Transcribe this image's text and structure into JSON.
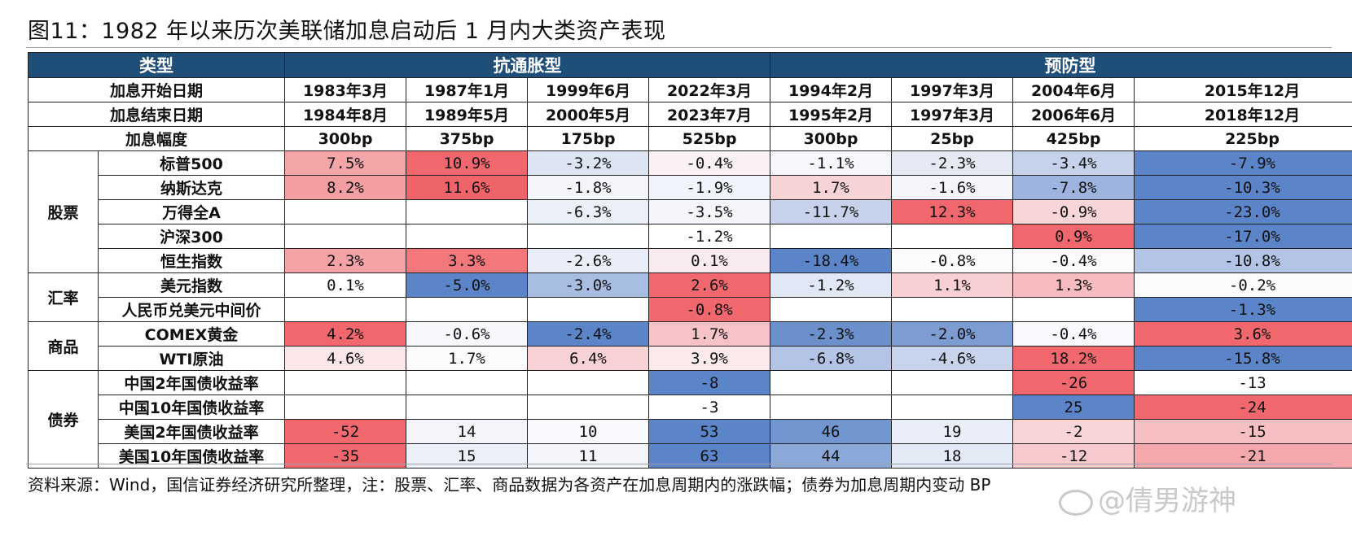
{
  "title": "图11：1982 年以来历次美联储加息启动后 1 月内大类资产表现",
  "header": {
    "type_label": "类型",
    "group_anti_inflation": "抗通胀型",
    "group_preventive": "预防型"
  },
  "rows_meta": {
    "start_label": "加息开始日期",
    "end_label": "加息结束日期",
    "size_label": "加息幅度",
    "start": [
      "1983年3月",
      "1987年1月",
      "1999年6月",
      "2022年3月",
      "1994年2月",
      "1997年3月",
      "2004年6月",
      "2015年12月"
    ],
    "end": [
      "1984年8月",
      "1989年5月",
      "2000年5月",
      "2023年7月",
      "1995年2月",
      "1997年3月",
      "2006年6月",
      "2018年12月"
    ],
    "size": [
      "300bp",
      "375bp",
      "175bp",
      "525bp",
      "300bp",
      "25bp",
      "425bp",
      "225bp"
    ]
  },
  "categories": [
    {
      "name": "股票",
      "rows": [
        {
          "name": "标普500",
          "values": [
            "7.5%",
            "10.9%",
            "-3.2%",
            "-0.4%",
            "-1.1%",
            "-2.3%",
            "-3.4%",
            "-7.9%"
          ],
          "colors": [
            "#f4a5a8",
            "#f0686e",
            "#dde4f2",
            "#f9f1f4",
            "#f6f7fc",
            "#e4e9f4",
            "#c6d2eb",
            "#5b85c8"
          ]
        },
        {
          "name": "纳斯达克",
          "values": [
            "8.2%",
            "11.6%",
            "-1.8%",
            "-1.9%",
            "1.7%",
            "-1.6%",
            "-7.8%",
            "-10.3%"
          ],
          "colors": [
            "#f29ea2",
            "#ef6469",
            "#f3f5fb",
            "#f1f4fb",
            "#f8d3d6",
            "#f3f5fb",
            "#9db4de",
            "#5b85c8"
          ]
        },
        {
          "name": "万得全A",
          "values": [
            "",
            "",
            "-6.3%",
            "-3.5%",
            "-11.7%",
            "12.3%",
            "-0.9%",
            "-23.0%"
          ],
          "colors": [
            "#ffffff",
            "#ffffff",
            "#ebeff8",
            "#f4f6fb",
            "#c6d2eb",
            "#f0686e",
            "#f8d6d8",
            "#5b85c8"
          ]
        },
        {
          "name": "沪深300",
          "values": [
            "",
            "",
            "",
            "-1.2%",
            "",
            "",
            "0.9%",
            "-17.0%"
          ],
          "colors": [
            "#ffffff",
            "#ffffff",
            "#ffffff",
            "#ffffff",
            "#ffffff",
            "#ffffff",
            "#f0686e",
            "#5b85c8"
          ]
        },
        {
          "name": "恒生指数",
          "values": [
            "2.3%",
            "3.3%",
            "-2.6%",
            "0.1%",
            "-18.4%",
            "-0.8%",
            "-0.4%",
            "-10.8%"
          ],
          "colors": [
            "#f5a3a6",
            "#f2787c",
            "#e9eef8",
            "#f9eaee",
            "#5b85c8",
            "#fbfbfe",
            "#fbfbfe",
            "#b3c4e6"
          ]
        }
      ]
    },
    {
      "name": "汇率",
      "rows": [
        {
          "name": "美元指数",
          "values": [
            "0.1%",
            "-5.0%",
            "-3.0%",
            "2.6%",
            "-1.2%",
            "1.1%",
            "1.3%",
            "-0.2%"
          ],
          "colors": [
            "#ffffff",
            "#5b85c8",
            "#a8bde2",
            "#f0686e",
            "#e1e7f4",
            "#f8d0d3",
            "#f6bcc0",
            "#fbfbfe"
          ]
        },
        {
          "name": "人民币兑美元中间价",
          "values": [
            "",
            "",
            "",
            "-0.8%",
            "",
            "",
            "",
            "-1.3%"
          ],
          "colors": [
            "#ffffff",
            "#ffffff",
            "#ffffff",
            "#f0686e",
            "#ffffff",
            "#ffffff",
            "#ffffff",
            "#5b85c8"
          ]
        }
      ]
    },
    {
      "name": "商品",
      "rows": [
        {
          "name": "COMEX黄金",
          "values": [
            "4.2%",
            "-0.6%",
            "-2.4%",
            "1.7%",
            "-2.3%",
            "-2.0%",
            "-0.4%",
            "3.6%"
          ],
          "colors": [
            "#f0686e",
            "#f7f8fc",
            "#5b85c8",
            "#f7c3c6",
            "#6b90cc",
            "#7d9dd2",
            "#f9f9fd",
            "#f0686e"
          ]
        },
        {
          "name": "WTI原油",
          "values": [
            "4.6%",
            "1.7%",
            "6.4%",
            "3.9%",
            "-6.8%",
            "-4.6%",
            "18.2%",
            "-15.8%"
          ],
          "colors": [
            "#fbe7ea",
            "#fbfbfd",
            "#f8d2d5",
            "#fbe9ec",
            "#b3c4e6",
            "#c8d4ec",
            "#f0686e",
            "#5b85c8"
          ]
        }
      ]
    },
    {
      "name": "债券",
      "rows": [
        {
          "name": "中国2年国债收益率",
          "values": [
            "",
            "",
            "",
            "-8",
            "",
            "",
            "-26",
            "-13"
          ],
          "colors": [
            "#ffffff",
            "#ffffff",
            "#ffffff",
            "#5b85c8",
            "#ffffff",
            "#ffffff",
            "#f0686e",
            "#ffffff"
          ]
        },
        {
          "name": "中国10年国债收益率",
          "values": [
            "",
            "",
            "",
            "-3",
            "",
            "",
            "25",
            "-24"
          ],
          "colors": [
            "#ffffff",
            "#ffffff",
            "#ffffff",
            "#ffffff",
            "#ffffff",
            "#ffffff",
            "#5b85c8",
            "#f0686e"
          ]
        },
        {
          "name": "美国2年国债收益率",
          "values": [
            "-52",
            "14",
            "10",
            "53",
            "46",
            "19",
            "-2",
            "-15"
          ],
          "colors": [
            "#f0686e",
            "#f3f5fb",
            "#f9fafd",
            "#5b85c8",
            "#7196d0",
            "#e9eef8",
            "#f8d4d7",
            "#f6c0c3"
          ]
        },
        {
          "name": "美国10年国债收益率",
          "values": [
            "-35",
            "15",
            "11",
            "63",
            "44",
            "18",
            "-12",
            "-21"
          ],
          "colors": [
            "#f0686e",
            "#ecf0f9",
            "#f3f5fb",
            "#5b85c8",
            "#8aa8d8",
            "#e4e9f6",
            "#f7c9cc",
            "#f4a8ac"
          ]
        }
      ]
    }
  ],
  "source_note": "资料来源：Wind，国信证券经济研究所整理，注：股票、汇率、商品数据为各资产在加息周期内的涨跌幅；债券为加息周期内变动 BP",
  "watermark": "@倩男游神",
  "colors": {
    "header_bg": "#1f4e79",
    "up_red": "#f0686e",
    "down_blue": "#5b85c8"
  }
}
